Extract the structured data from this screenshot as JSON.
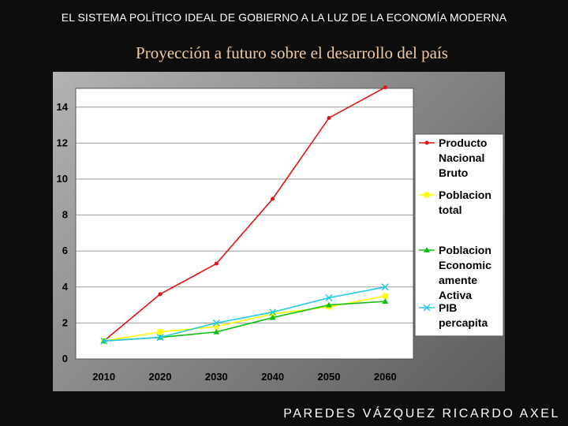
{
  "header": {
    "title": "EL SISTEMA POLÍTICO IDEAL DE GOBIERNO A LA LUZ DE LA ECONOMÍA MODERNA",
    "subtitle": "Proyección a futuro sobre el desarrollo del país"
  },
  "footer": {
    "author": "PAREDES VÁZQUEZ RICARDO AXEL"
  },
  "chart_data": {
    "type": "line",
    "title": "Proyección a futuro sobre el desarrollo del país",
    "xlabel": "",
    "ylabel": "",
    "categories": [
      "2010",
      "2020",
      "2030",
      "2040",
      "2050",
      "2060"
    ],
    "ylim": [
      0,
      15
    ],
    "yticks": [
      0,
      2,
      4,
      6,
      8,
      10,
      12,
      14
    ],
    "grid": true,
    "legend_position": "right",
    "series": [
      {
        "name": "Producto Nacional Bruto",
        "color": "#e01414",
        "marker": "circle",
        "values": [
          1,
          3.6,
          5.3,
          8.9,
          13.4,
          15.1
        ]
      },
      {
        "name": "Poblacion total",
        "color": "#ffff00",
        "marker": "square",
        "values": [
          1,
          1.5,
          1.8,
          2.5,
          2.9,
          3.5
        ]
      },
      {
        "name": "Poblacion Economicamente Activa",
        "color": "#11c011",
        "marker": "triangle",
        "values": [
          1,
          1.2,
          1.5,
          2.3,
          3.0,
          3.2
        ]
      },
      {
        "name": "PIB percapita",
        "color": "#22c8e6",
        "marker": "x",
        "values": [
          1,
          1.2,
          2.0,
          2.6,
          3.4,
          4.0
        ]
      }
    ],
    "legend_lines": [
      [
        "Producto",
        "Nacional",
        "Bruto"
      ],
      [
        "Poblacion",
        "total"
      ],
      [
        "Poblacion",
        "Economic",
        "amente",
        "Activa"
      ],
      [
        "PIB",
        "percapita"
      ]
    ]
  }
}
